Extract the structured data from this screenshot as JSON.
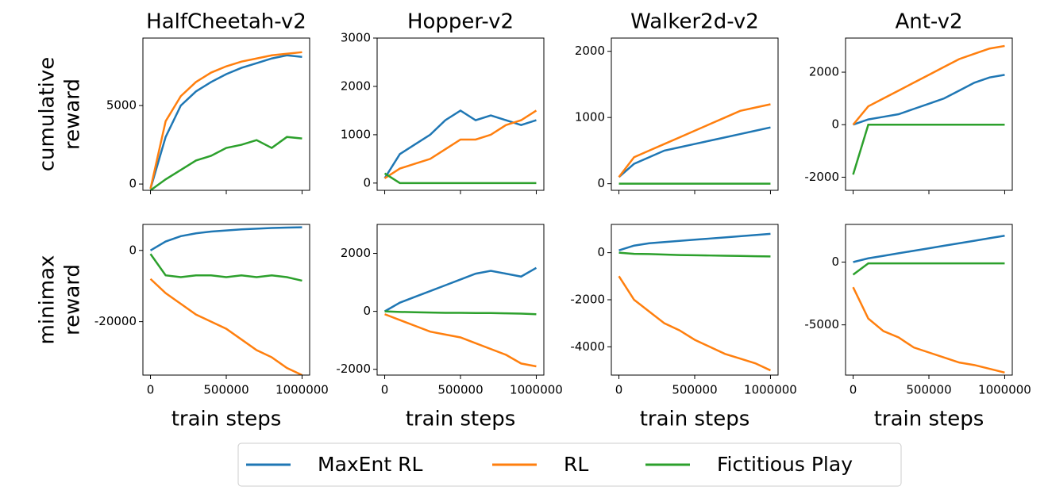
{
  "chart_data": [
    {
      "type": "line",
      "title": "HalfCheetah-v2",
      "ylabel": [
        "cumulative",
        "reward"
      ],
      "x": [
        0,
        100000,
        200000,
        300000,
        400000,
        500000,
        600000,
        700000,
        800000,
        900000,
        1000000
      ],
      "xlim": [
        -50000,
        1050000
      ],
      "xticks": [
        0,
        500000,
        1000000
      ],
      "ylim": [
        -400,
        9300
      ],
      "yticks": [
        0,
        5000
      ],
      "series": [
        {
          "name": "MaxEnt RL",
          "color": "#1f77b4",
          "values": [
            -300,
            3000,
            5000,
            5900,
            6500,
            7000,
            7400,
            7700,
            8000,
            8200,
            8100
          ]
        },
        {
          "name": "RL",
          "color": "#ff7f0e",
          "values": [
            -300,
            4000,
            5600,
            6500,
            7100,
            7500,
            7800,
            8000,
            8200,
            8300,
            8400
          ]
        },
        {
          "name": "Fictitious Play",
          "color": "#2ca02c",
          "values": [
            -400,
            300,
            900,
            1500,
            1800,
            2300,
            2500,
            2800,
            2300,
            3000,
            2900
          ]
        }
      ]
    },
    {
      "type": "line",
      "title": "Hopper-v2",
      "x": [
        0,
        100000,
        200000,
        300000,
        400000,
        500000,
        600000,
        700000,
        800000,
        900000,
        1000000
      ],
      "xlim": [
        -50000,
        1050000
      ],
      "xticks": [
        0,
        500000,
        1000000
      ],
      "ylim": [
        -150,
        3000
      ],
      "yticks": [
        0,
        1000,
        2000,
        3000
      ],
      "series": [
        {
          "color": "#1f77b4",
          "values": [
            100,
            600,
            800,
            1000,
            1300,
            1500,
            1300,
            1400,
            1300,
            1200,
            1300
          ]
        },
        {
          "color": "#ff7f0e",
          "values": [
            100,
            300,
            400,
            500,
            700,
            900,
            900,
            1000,
            1200,
            1300,
            1500
          ]
        },
        {
          "color": "#2ca02c",
          "values": [
            200,
            0,
            0,
            0,
            0,
            0,
            0,
            0,
            0,
            0,
            0
          ]
        }
      ]
    },
    {
      "type": "line",
      "title": "Walker2d-v2",
      "x": [
        0,
        100000,
        200000,
        300000,
        400000,
        500000,
        600000,
        700000,
        800000,
        900000,
        1000000
      ],
      "xlim": [
        -50000,
        1050000
      ],
      "xticks": [
        0,
        500000,
        1000000
      ],
      "ylim": [
        -100,
        2200
      ],
      "yticks": [
        0,
        1000,
        2000
      ],
      "series": [
        {
          "color": "#1f77b4",
          "values": [
            100,
            300,
            400,
            500,
            550,
            600,
            650,
            700,
            750,
            800,
            850
          ]
        },
        {
          "color": "#ff7f0e",
          "values": [
            100,
            400,
            500,
            600,
            700,
            800,
            900,
            1000,
            1100,
            1150,
            1200
          ]
        },
        {
          "color": "#2ca02c",
          "values": [
            0,
            0,
            0,
            0,
            0,
            0,
            0,
            0,
            0,
            0,
            0
          ]
        }
      ]
    },
    {
      "type": "line",
      "title": "Ant-v2",
      "x": [
        0,
        100000,
        200000,
        300000,
        400000,
        500000,
        600000,
        700000,
        800000,
        900000,
        1000000
      ],
      "xlim": [
        -50000,
        1050000
      ],
      "xticks": [
        0,
        500000,
        1000000
      ],
      "ylim": [
        -2500,
        3300
      ],
      "yticks": [
        -2000,
        0,
        2000
      ],
      "series": [
        {
          "color": "#1f77b4",
          "values": [
            0,
            200,
            300,
            400,
            600,
            800,
            1000,
            1300,
            1600,
            1800,
            1900
          ]
        },
        {
          "color": "#ff7f0e",
          "values": [
            0,
            700,
            1000,
            1300,
            1600,
            1900,
            2200,
            2500,
            2700,
            2900,
            3000
          ]
        },
        {
          "color": "#2ca02c",
          "values": [
            -1900,
            0,
            0,
            0,
            0,
            0,
            0,
            0,
            0,
            0,
            0
          ]
        }
      ]
    },
    {
      "type": "line",
      "ylabel": [
        "minimax",
        "reward"
      ],
      "xlabel": "train steps",
      "x": [
        0,
        100000,
        200000,
        300000,
        400000,
        500000,
        600000,
        700000,
        800000,
        900000,
        1000000
      ],
      "xlim": [
        -50000,
        1050000
      ],
      "xticks": [
        0,
        500000,
        1000000
      ],
      "ylim": [
        -35000,
        7300
      ],
      "yticks": [
        -20000,
        0
      ],
      "series": [
        {
          "color": "#1f77b4",
          "values": [
            0,
            2500,
            4000,
            4800,
            5300,
            5600,
            5900,
            6100,
            6300,
            6400,
            6500
          ]
        },
        {
          "color": "#ff7f0e",
          "values": [
            -8000,
            -12000,
            -15000,
            -18000,
            -20000,
            -22000,
            -25000,
            -28000,
            -30000,
            -33000,
            -35000
          ]
        },
        {
          "color": "#2ca02c",
          "values": [
            -1000,
            -7000,
            -7500,
            -7000,
            -7000,
            -7500,
            -7000,
            -7500,
            -7000,
            -7500,
            -8500
          ]
        }
      ]
    },
    {
      "type": "line",
      "xlabel": "train steps",
      "x": [
        0,
        100000,
        200000,
        300000,
        400000,
        500000,
        600000,
        700000,
        800000,
        900000,
        1000000
      ],
      "xlim": [
        -50000,
        1050000
      ],
      "xticks": [
        0,
        500000,
        1000000
      ],
      "ylim": [
        -2200,
        3000
      ],
      "yticks": [
        -2000,
        0,
        2000
      ],
      "series": [
        {
          "color": "#1f77b4",
          "values": [
            0,
            300,
            500,
            700,
            900,
            1100,
            1300,
            1400,
            1300,
            1200,
            1500
          ]
        },
        {
          "color": "#ff7f0e",
          "values": [
            -100,
            -300,
            -500,
            -700,
            -800,
            -900,
            -1100,
            -1300,
            -1500,
            -1800,
            -1900
          ]
        },
        {
          "color": "#2ca02c",
          "values": [
            0,
            -20,
            -30,
            -40,
            -50,
            -50,
            -60,
            -60,
            -70,
            -80,
            -100
          ]
        }
      ]
    },
    {
      "type": "line",
      "xlabel": "train steps",
      "x": [
        0,
        100000,
        200000,
        300000,
        400000,
        500000,
        600000,
        700000,
        800000,
        900000,
        1000000
      ],
      "xlim": [
        -50000,
        1050000
      ],
      "xticks": [
        0,
        500000,
        1000000
      ],
      "ylim": [
        -5200,
        1200
      ],
      "yticks": [
        -4000,
        -2000,
        0
      ],
      "series": [
        {
          "color": "#1f77b4",
          "values": [
            100,
            300,
            400,
            450,
            500,
            550,
            600,
            650,
            700,
            750,
            800
          ]
        },
        {
          "color": "#ff7f0e",
          "values": [
            -1000,
            -2000,
            -2500,
            -3000,
            -3300,
            -3700,
            -4000,
            -4300,
            -4500,
            -4700,
            -5000
          ]
        },
        {
          "color": "#2ca02c",
          "values": [
            0,
            -50,
            -60,
            -80,
            -100,
            -110,
            -120,
            -130,
            -140,
            -150,
            -160
          ]
        }
      ]
    },
    {
      "type": "line",
      "xlabel": "train steps",
      "x": [
        0,
        100000,
        200000,
        300000,
        400000,
        500000,
        600000,
        700000,
        800000,
        900000,
        1000000
      ],
      "xlim": [
        -50000,
        1050000
      ],
      "xticks": [
        0,
        500000,
        1000000
      ],
      "ylim": [
        -9000,
        3000
      ],
      "yticks": [
        -5000,
        0
      ],
      "series": [
        {
          "color": "#1f77b4",
          "values": [
            0,
            300,
            500,
            700,
            900,
            1100,
            1300,
            1500,
            1700,
            1900,
            2100
          ]
        },
        {
          "color": "#ff7f0e",
          "values": [
            -2000,
            -4500,
            -5500,
            -6000,
            -6800,
            -7200,
            -7600,
            -8000,
            -8200,
            -8500,
            -8800
          ]
        },
        {
          "color": "#2ca02c",
          "values": [
            -1000,
            -100,
            -100,
            -100,
            -100,
            -100,
            -100,
            -100,
            -100,
            -100,
            -100
          ]
        }
      ]
    }
  ]
}
